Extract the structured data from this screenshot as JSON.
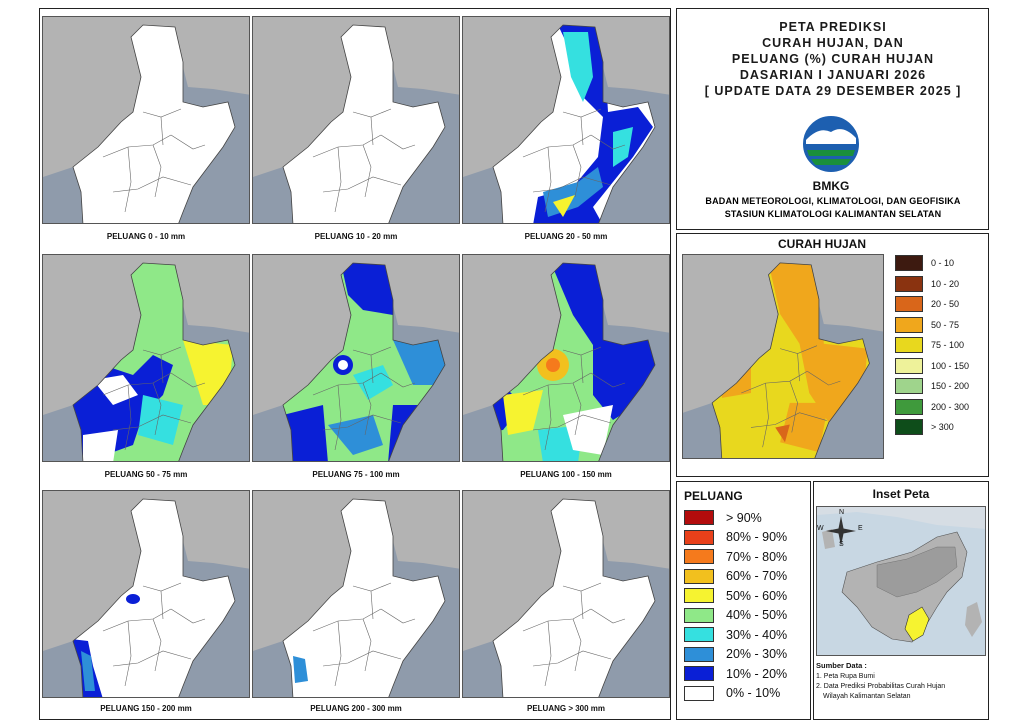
{
  "panels": [
    {
      "label": "PELUANG 0 - 10 mm"
    },
    {
      "label": "PELUANG 10 - 20 mm"
    },
    {
      "label": "PELUANG 20 - 50 mm"
    },
    {
      "label": "PELUANG 50 - 75 mm"
    },
    {
      "label": "PELUANG 75 - 100 mm"
    },
    {
      "label": "PELUANG 100 - 150 mm"
    },
    {
      "label": "PELUANG 150 - 200 mm"
    },
    {
      "label": "PELUANG 200 - 300 mm"
    },
    {
      "label": "PELUANG > 300 mm"
    }
  ],
  "header": {
    "title_lines": [
      "PETA PREDIKSI",
      "CURAH HUJAN, DAN",
      "PELUANG (%) CURAH HUJAN",
      "DASARIAN I JANUARI 2026",
      "[ UPDATE DATA 29 DESEMBER 2025 ]"
    ],
    "logo_text": "BMKG",
    "agency_lines": [
      "BADAN METEOROLOGI, KLIMATOLOGI, DAN GEOFISIKA",
      "STASIUN KLIMATOLOGI KALIMANTAN SELATAN"
    ]
  },
  "rain_legend": {
    "title": "CURAH HUJAN",
    "items": [
      {
        "label": "0 - 10",
        "color": "#3d1a10"
      },
      {
        "label": "10 - 20",
        "color": "#8a3310"
      },
      {
        "label": "20 - 50",
        "color": "#d9661a"
      },
      {
        "label": "50 - 75",
        "color": "#f0a71c"
      },
      {
        "label": "75 - 100",
        "color": "#e8d81e"
      },
      {
        "label": "100 - 150",
        "color": "#eef29a"
      },
      {
        "label": "150 - 200",
        "color": "#9fd48c"
      },
      {
        "label": "200 - 300",
        "color": "#3f9a3c"
      },
      {
        "label": "> 300",
        "color": "#0e4d1a"
      }
    ]
  },
  "prob_legend": {
    "title": "PELUANG",
    "items": [
      {
        "label": "> 90%",
        "color": "#b30c0c"
      },
      {
        "label": "80% - 90%",
        "color": "#e8401a"
      },
      {
        "label": "70% - 80%",
        "color": "#f57a1c"
      },
      {
        "label": "60% - 70%",
        "color": "#f2c01e"
      },
      {
        "label": "50% - 60%",
        "color": "#f6f330"
      },
      {
        "label": "40% - 50%",
        "color": "#8fe888"
      },
      {
        "label": "30% - 40%",
        "color": "#35e0e0"
      },
      {
        "label": "20% - 30%",
        "color": "#2e8fd8"
      },
      {
        "label": "10% - 20%",
        "color": "#0a1fd6"
      },
      {
        "label": "0% - 10%",
        "color": "#ffffff"
      }
    ]
  },
  "inset": {
    "title": "Inset Peta",
    "compass": {
      "n": "N",
      "s": "S",
      "e": "E",
      "w": "W"
    }
  },
  "sources": {
    "title": "Sumber Data :",
    "items": [
      "1. Peta Rupa Bumi",
      "2. Data Prediksi Probabilitas Curah Hujan",
      "Wilayah Kalimantan Selatan"
    ]
  }
}
